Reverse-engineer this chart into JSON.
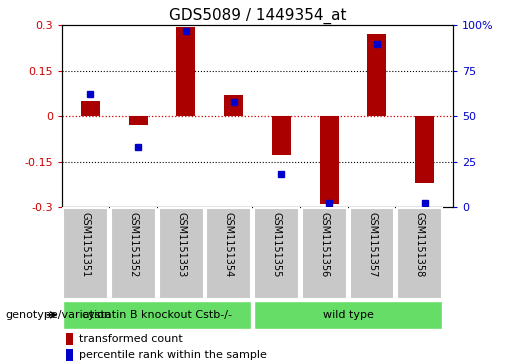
{
  "title": "GDS5089 / 1449354_at",
  "samples": [
    "GSM1151351",
    "GSM1151352",
    "GSM1151353",
    "GSM1151354",
    "GSM1151355",
    "GSM1151356",
    "GSM1151357",
    "GSM1151358"
  ],
  "transformed_count": [
    0.05,
    -0.03,
    0.295,
    0.07,
    -0.13,
    -0.29,
    0.27,
    -0.22
  ],
  "percentile_rank": [
    62,
    33,
    97,
    58,
    18,
    2,
    90,
    2
  ],
  "ylim_left": [
    -0.3,
    0.3
  ],
  "ylim_right": [
    0,
    100
  ],
  "yticks_left": [
    -0.3,
    -0.15,
    0.0,
    0.15,
    0.3
  ],
  "yticks_right": [
    0,
    25,
    50,
    75,
    100
  ],
  "ytick_labels_left": [
    "-0.3",
    "-0.15",
    "0",
    "0.15",
    "0.3"
  ],
  "ytick_labels_right": [
    "0",
    "25",
    "50",
    "75",
    "100%"
  ],
  "dotted_lines": [
    -0.15,
    0.15
  ],
  "bar_color": "#AA0000",
  "scatter_color": "#0000CC",
  "group1_label": "cystatin B knockout Cstb-/-",
  "group1_count": 4,
  "group2_label": "wild type",
  "group2_count": 4,
  "group_color": "#66DD66",
  "sample_box_color": "#C8C8C8",
  "genotype_label": "genotype/variation",
  "legend_bar_label": "transformed count",
  "legend_scatter_label": "percentile rank within the sample",
  "title_fontsize": 11,
  "tick_fontsize": 8,
  "label_fontsize": 8,
  "group_fontsize": 8,
  "sample_fontsize": 7
}
